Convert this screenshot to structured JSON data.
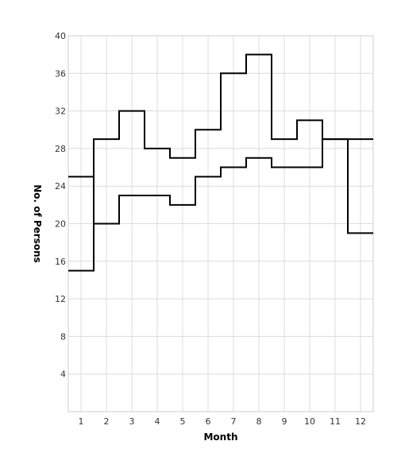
{
  "chart_data": {
    "type": "line",
    "step": "center",
    "title": "",
    "xlabel": "Month",
    "ylabel": "No. of Persons",
    "x": [
      1,
      2,
      3,
      4,
      5,
      6,
      7,
      8,
      9,
      10,
      11,
      12
    ],
    "x_tick_labels": [
      "1",
      "2",
      "3",
      "4",
      "5",
      "6",
      "7",
      "8",
      "9",
      "10",
      "11",
      "12"
    ],
    "y_ticks": [
      4,
      8,
      12,
      16,
      20,
      24,
      28,
      32,
      36,
      40
    ],
    "y_tick_labels": [
      "4",
      "8",
      "12",
      "16",
      "20",
      "24",
      "28",
      "32",
      "36",
      "40"
    ],
    "xlim": [
      0.5,
      12.5
    ],
    "ylim": [
      0,
      40
    ],
    "grid": true,
    "legend": "none",
    "series": [
      {
        "values": [
          15,
          29,
          32,
          28,
          27,
          30,
          36,
          38,
          29,
          31,
          29,
          29
        ],
        "color": "#000000"
      },
      {
        "values": [
          25,
          20,
          23,
          23,
          22,
          25,
          26,
          27,
          26,
          26,
          29,
          19
        ],
        "color": "#000000"
      }
    ]
  }
}
